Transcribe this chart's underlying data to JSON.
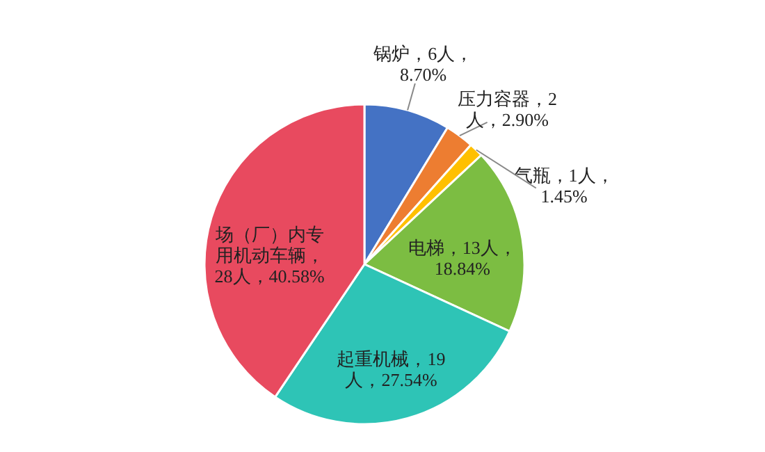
{
  "chart_data": {
    "type": "pie",
    "categories": [
      "锅炉",
      "压力容器",
      "气瓶",
      "电梯",
      "起重机械",
      "场（厂）内专用机动车辆"
    ],
    "values": [
      6,
      2,
      1,
      13,
      19,
      28
    ],
    "colors": [
      "#4472c4",
      "#ed7d31",
      "#ffc000",
      "#7cbd42",
      "#2ec4b6",
      "#e84a5f"
    ],
    "value_labels": [
      "，6人，8.70%",
      "，2人，2.90%",
      "，1人，1.45%",
      "，13人，18.84%",
      "，19人，27.54%",
      "，28人，40.58%"
    ]
  }
}
